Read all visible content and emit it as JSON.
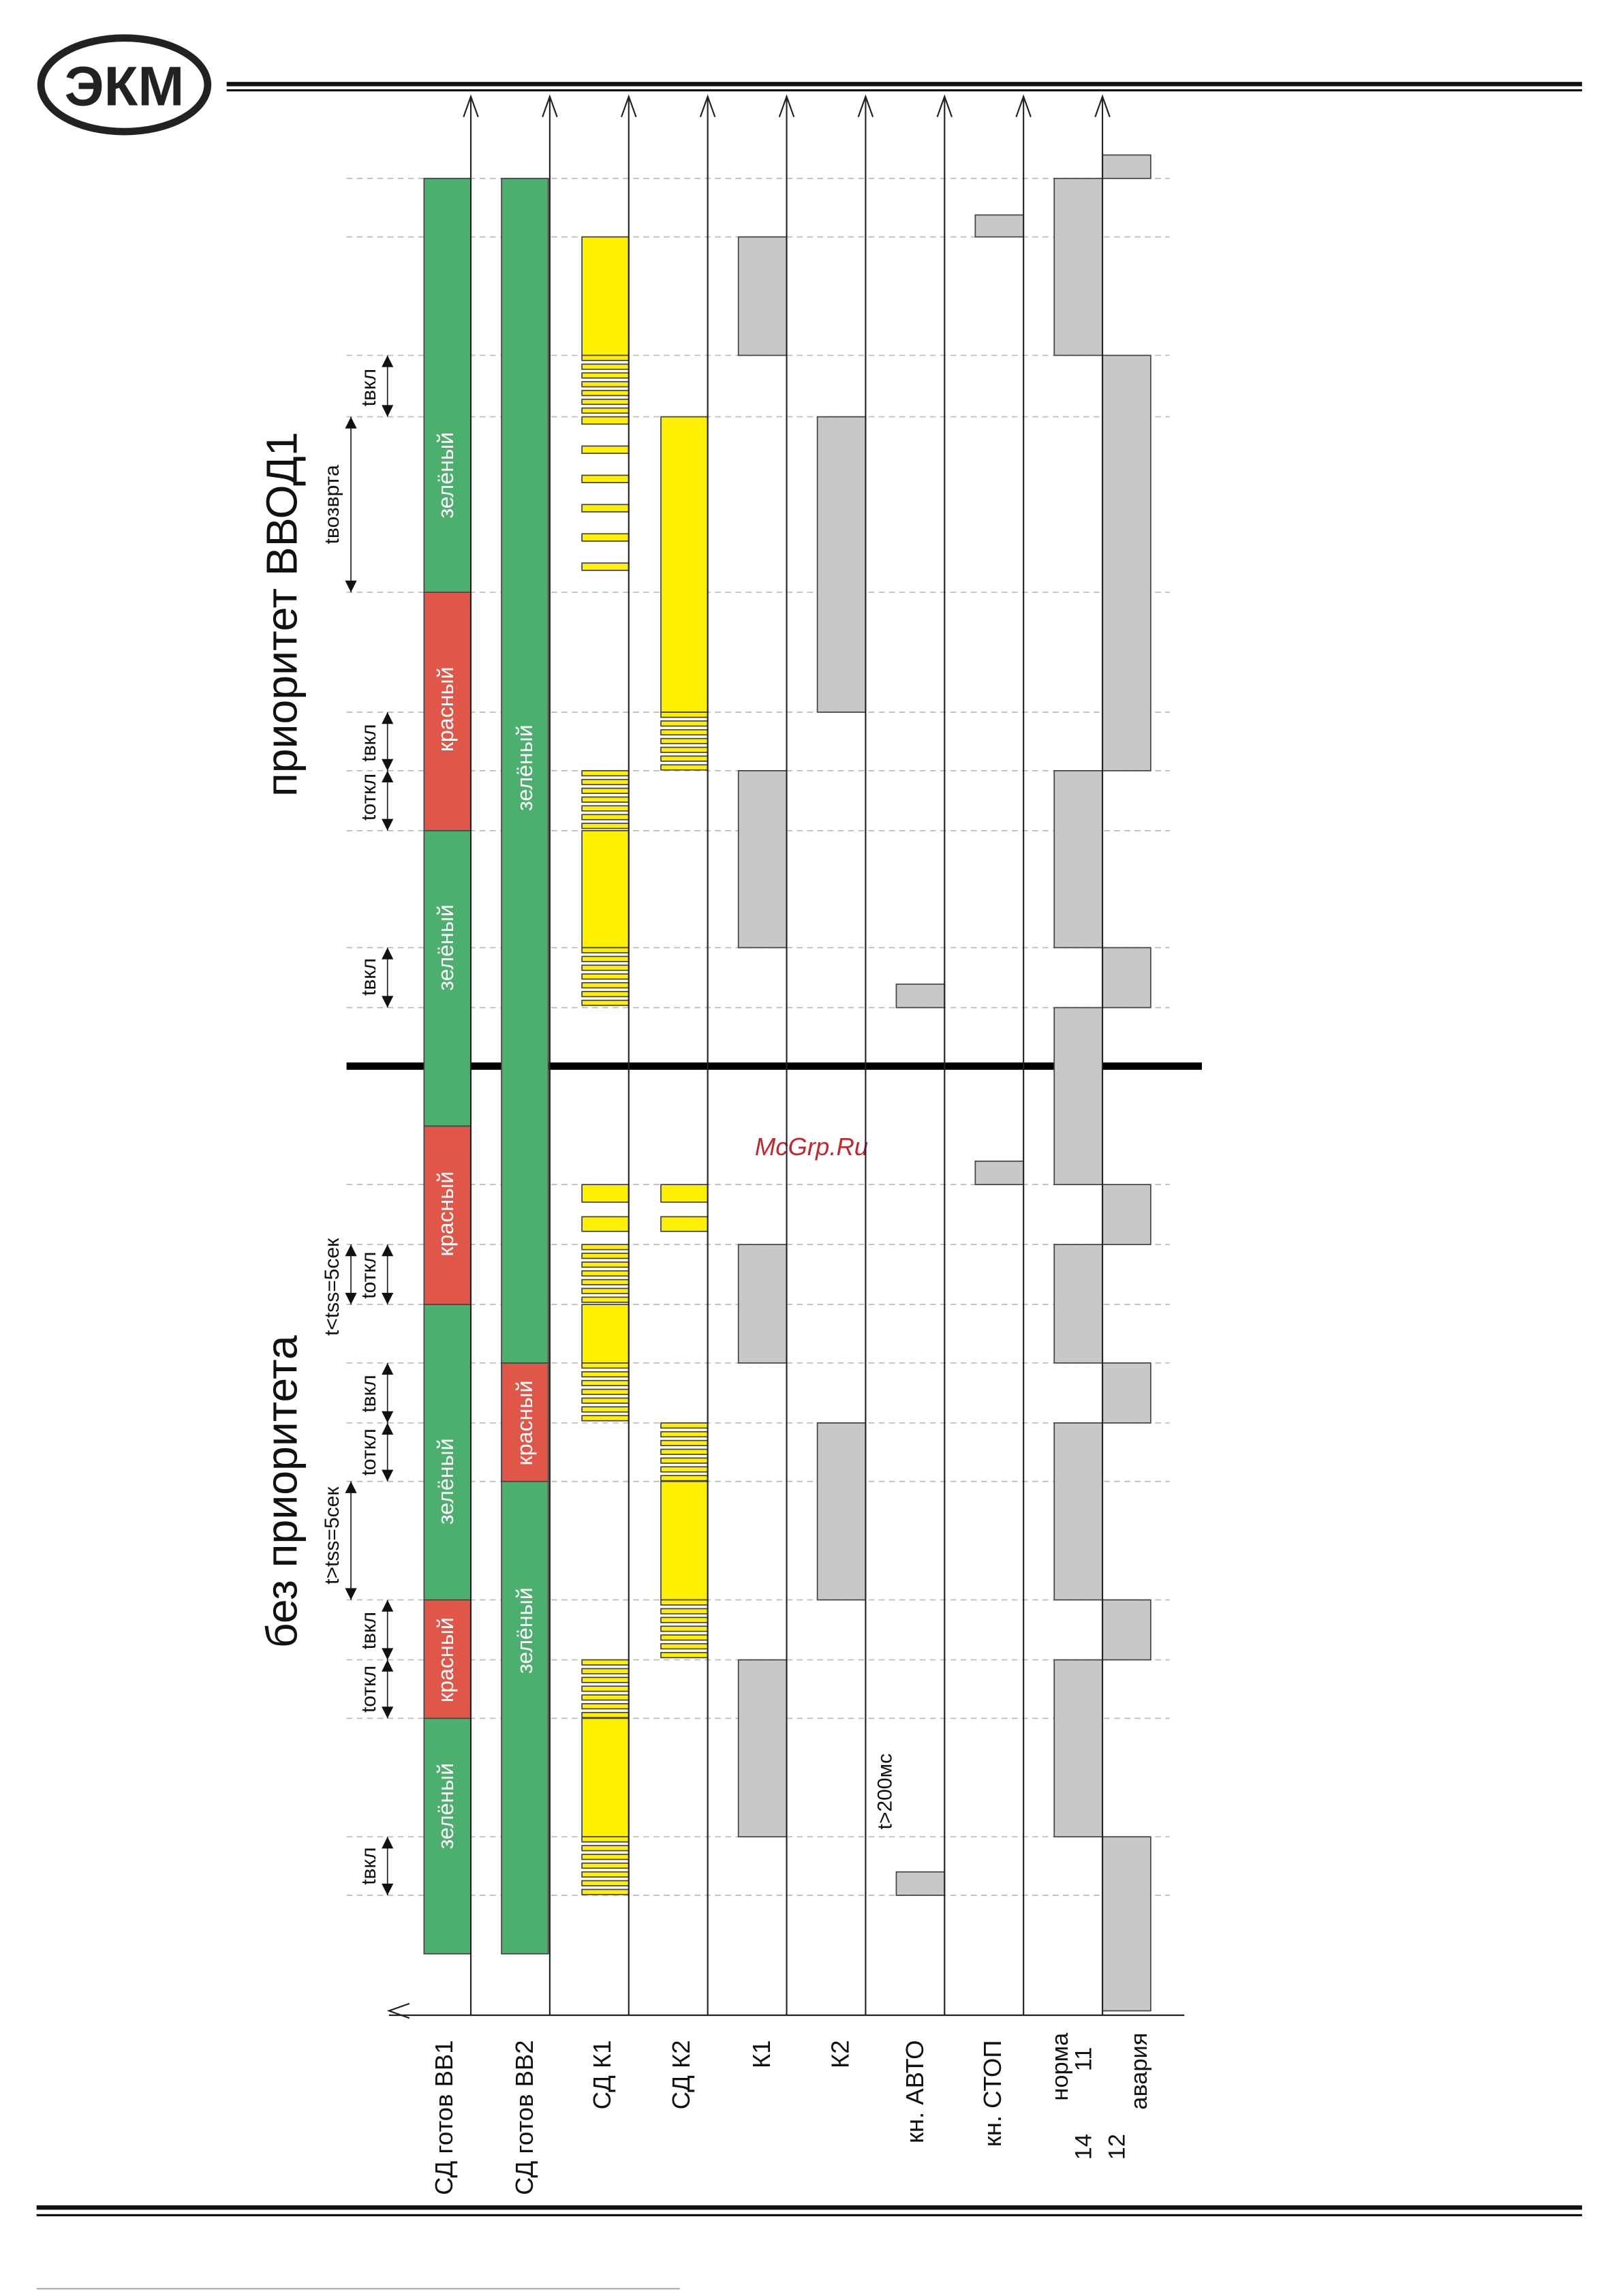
{
  "header": {
    "logo": "ЭКМ"
  },
  "titles": {
    "priority": "приоритет ВВОД1",
    "no_priority": "без приоритета"
  },
  "watermark": "McGrp.Ru",
  "rows": [
    "СД готов ВВ1",
    "СД готов ВВ2",
    "СД К1",
    "СД К2",
    "К1",
    "К2",
    "кн. АВТО",
    "кн. СТОП"
  ],
  "relay": {
    "normal": "норма",
    "alarm": "авария",
    "pin14": "14",
    "pin11": "11",
    "pin12": "12"
  },
  "state_labels": [
    "зелёный",
    "красный",
    "зелёный",
    "красный",
    "зелёный",
    "красный",
    "зелёный",
    "зелёный",
    "красный",
    "зелёный"
  ],
  "timing_labels": [
    "tвкл",
    "tоткл",
    "tвкл",
    "tвкл",
    "tвозврта",
    "tвкл",
    "tоткл",
    "tвкл",
    "tоткл",
    "tвкл",
    "tоткл",
    "t>tss=5сек",
    "t<tss=5сек",
    "t>200мс"
  ]
}
